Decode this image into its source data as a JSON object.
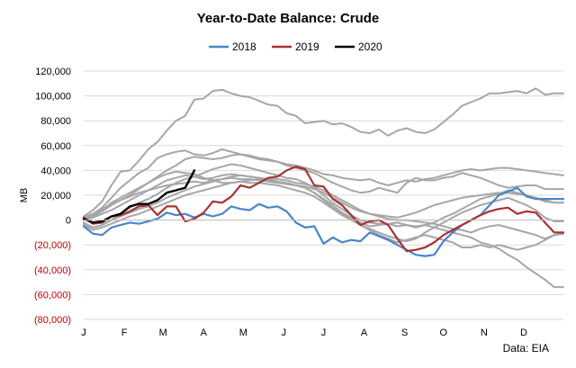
{
  "chart_data": {
    "type": "line",
    "title": "Year-to-Date Balance: Crude",
    "ylabel": "MB",
    "source": "Data: EIA",
    "ylim": [
      -80000,
      120000
    ],
    "yticks": [
      {
        "value": 120000,
        "label": "120,000"
      },
      {
        "value": 100000,
        "label": "100,000"
      },
      {
        "value": 80000,
        "label": "80,000"
      },
      {
        "value": 60000,
        "label": "60,000"
      },
      {
        "value": 40000,
        "label": "40,000"
      },
      {
        "value": 20000,
        "label": "20,000"
      },
      {
        "value": 0,
        "label": "0"
      },
      {
        "value": -20000,
        "label": "(20,000)"
      },
      {
        "value": -40000,
        "label": "(40,000)"
      },
      {
        "value": -60000,
        "label": "(60,000)"
      },
      {
        "value": -80000,
        "label": "(80,000)"
      }
    ],
    "xlim": [
      0,
      52
    ],
    "month_labels": [
      {
        "label": "J",
        "x": 0
      },
      {
        "label": "F",
        "x": 4.4
      },
      {
        "label": "M",
        "x": 8.6
      },
      {
        "label": "A",
        "x": 13
      },
      {
        "label": "M",
        "x": 17.3
      },
      {
        "label": "J",
        "x": 21.7
      },
      {
        "label": "J",
        "x": 26
      },
      {
        "label": "A",
        "x": 30.4
      },
      {
        "label": "S",
        "x": 34.8
      },
      {
        "label": "O",
        "x": 39
      },
      {
        "label": "N",
        "x": 43.4
      },
      {
        "label": "D",
        "x": 47.7
      }
    ],
    "negative_color": "#c00000",
    "legend_position": "top",
    "series": [
      {
        "name": "2018",
        "color": "#4a86c8",
        "width": 2.2,
        "in_legend": true,
        "y": [
          -5000,
          -11000,
          -12000,
          -6000,
          -4000,
          -2000,
          -3000,
          -1000,
          1000,
          6000,
          4000,
          5000,
          2000,
          5000,
          3000,
          5000,
          11000,
          9000,
          8000,
          13000,
          10000,
          11000,
          7000,
          -2000,
          -6000,
          -5000,
          -19000,
          -14000,
          -18000,
          -16000,
          -17000,
          -10000,
          -13000,
          -16000,
          -20000,
          -24000,
          -28000,
          -29000,
          -28000,
          -17000,
          -10000,
          -4000,
          0,
          4000,
          12000,
          20000,
          23000,
          26000,
          19000,
          17000,
          17000,
          17000,
          17000
        ]
      },
      {
        "name": "2019",
        "color": "#a83232",
        "width": 2.2,
        "in_legend": true,
        "y": [
          2000,
          -3000,
          -2000,
          3000,
          4000,
          7000,
          11000,
          12000,
          4000,
          11000,
          11000,
          -1000,
          1000,
          6000,
          15000,
          14000,
          19000,
          28000,
          26000,
          30000,
          34000,
          35000,
          40000,
          43000,
          41000,
          28000,
          27000,
          17000,
          12000,
          4000,
          -4000,
          -1000,
          0,
          -4000,
          -15000,
          -25000,
          -24000,
          -22000,
          -18000,
          -12000,
          -8000,
          -4000,
          0,
          4000,
          7000,
          9000,
          10000,
          5000,
          7000,
          6000,
          -2000,
          -10000,
          -10000
        ]
      },
      {
        "name": "2020",
        "color": "#000000",
        "width": 2.4,
        "in_legend": true,
        "y": [
          1000,
          -2000,
          -1000,
          3000,
          5000,
          11000,
          13000,
          13000,
          16000,
          22000,
          24000,
          26000,
          40000
        ]
      },
      {
        "name": "",
        "color": "#a6a6a6",
        "width": 2,
        "in_legend": false,
        "y": [
          3000,
          8000,
          15000,
          28000,
          39000,
          40000,
          48000,
          57000,
          63000,
          72000,
          80000,
          84000,
          97000,
          98000,
          104000,
          105000,
          102000,
          100000,
          99000,
          96000,
          93000,
          92000,
          86000,
          84000,
          78000,
          79000,
          80000,
          77000,
          78000,
          75000,
          71000,
          70000,
          73000,
          68000,
          72000,
          74000,
          71000,
          70000,
          73000,
          79000,
          85000,
          92000,
          95000,
          98000,
          102000,
          102000,
          103000,
          104000,
          102000,
          106000,
          101000,
          102000,
          102000
        ]
      },
      {
        "name": "",
        "color": "#a6a6a6",
        "width": 2,
        "in_legend": false,
        "y": [
          2000,
          5000,
          10000,
          18000,
          26000,
          32000,
          38000,
          42000,
          50000,
          53000,
          55000,
          56000,
          53000,
          52000,
          54000,
          57000,
          55000,
          53000,
          51000,
          49000,
          48000,
          47000,
          45000,
          44000,
          42000,
          40000,
          37000,
          36000,
          34000,
          33000,
          32000,
          33000,
          30000,
          28000,
          30000,
          32000,
          31000,
          33000,
          34000,
          36000,
          38000,
          40000,
          41000,
          40000,
          41000,
          42000,
          42000,
          41000,
          40000,
          39000,
          38000,
          37000,
          36000
        ]
      },
      {
        "name": "",
        "color": "#a6a6a6",
        "width": 2,
        "in_legend": false,
        "y": [
          0,
          3000,
          7000,
          12000,
          16000,
          20000,
          25000,
          30000,
          35000,
          40000,
          44000,
          49000,
          51000,
          50000,
          49000,
          50000,
          52000,
          53000,
          52000,
          50000,
          49000,
          47000,
          44000,
          42000,
          40000,
          38000,
          34000,
          30000,
          27000,
          24000,
          22000,
          23000,
          26000,
          24000,
          22000,
          30000,
          34000,
          32000,
          32000,
          34000,
          35000,
          38000,
          36000,
          34000,
          31000,
          28000,
          26000,
          27000,
          28000,
          28000,
          25000,
          25000,
          25000
        ]
      },
      {
        "name": "",
        "color": "#a6a6a6",
        "width": 2,
        "in_legend": false,
        "y": [
          -2000,
          -6000,
          -4000,
          0,
          5000,
          10000,
          14000,
          17000,
          21000,
          26000,
          30000,
          33000,
          35000,
          38000,
          41000,
          43000,
          45000,
          44000,
          42000,
          40000,
          38000,
          36000,
          34000,
          33000,
          30000,
          26000,
          20000,
          14000,
          9000,
          4000,
          0,
          -2000,
          -3000,
          -3000,
          -5000,
          -4000,
          -5000,
          -4000,
          -6000,
          -8000,
          -10000,
          -12000,
          -14000,
          -18000,
          -20000,
          -23000,
          -28000,
          -32000,
          -38000,
          -43000,
          -48000,
          -54000,
          -54000
        ]
      },
      {
        "name": "",
        "color": "#a6a6a6",
        "width": 2,
        "in_legend": false,
        "y": [
          -3000,
          -6000,
          -4000,
          0,
          3000,
          6000,
          9000,
          11000,
          14000,
          18000,
          21000,
          24000,
          27000,
          29000,
          31000,
          33000,
          35000,
          36000,
          35000,
          34000,
          33000,
          31000,
          29000,
          28000,
          26000,
          22000,
          16000,
          10000,
          5000,
          1000,
          -4000,
          -8000,
          -12000,
          -15000,
          -18000,
          -16000,
          -14000,
          -12000,
          -14000,
          -16000,
          -18000,
          -22000,
          -22000,
          -20000,
          -22000,
          -20000,
          -22000,
          -24000,
          -22000,
          -20000,
          -16000,
          -12000,
          -11000
        ]
      },
      {
        "name": "",
        "color": "#a6a6a6",
        "width": 2,
        "in_legend": false,
        "y": [
          -4000,
          -8000,
          -6000,
          -3000,
          0,
          3000,
          5000,
          8000,
          11000,
          14000,
          17000,
          20000,
          22000,
          24000,
          26000,
          28000,
          30000,
          31000,
          30000,
          30000,
          29000,
          28000,
          26000,
          24000,
          22000,
          19000,
          14000,
          9000,
          4000,
          0,
          -4000,
          -7000,
          -10000,
          -13000,
          -15000,
          -17000,
          -15000,
          -10000,
          -6000,
          -2000,
          2000,
          6000,
          9000,
          12000,
          14000,
          16000,
          18000,
          15000,
          12000,
          8000,
          2000,
          -1000,
          -1000
        ]
      },
      {
        "name": "",
        "color": "#a6a6a6",
        "width": 2,
        "in_legend": false,
        "y": [
          0,
          2000,
          5000,
          8000,
          12000,
          16000,
          20000,
          24000,
          28000,
          32000,
          34000,
          36000,
          35000,
          33000,
          34000,
          36000,
          37000,
          36000,
          35000,
          34000,
          33000,
          33000,
          32000,
          30000,
          29000,
          27000,
          24000,
          20000,
          16000,
          12000,
          8000,
          5000,
          3000,
          1000,
          0,
          0,
          -1000,
          -2000,
          -3000,
          -5000,
          -7000,
          -8000,
          -10000,
          -7000,
          -5000,
          -4000,
          -6000,
          -8000,
          -10000,
          -12000,
          -15000,
          -12000,
          -11000
        ]
      },
      {
        "name": "",
        "color": "#a6a6a6",
        "width": 2,
        "in_legend": false,
        "y": [
          1000,
          4000,
          8000,
          14000,
          18000,
          22000,
          26000,
          30000,
          34000,
          37000,
          39000,
          38000,
          37000,
          34000,
          32000,
          30000,
          30000,
          31000,
          32000,
          33000,
          32000,
          31000,
          30000,
          28000,
          26000,
          22000,
          17000,
          12000,
          6000,
          2000,
          -2000,
          -5000,
          -4000,
          -3000,
          -2000,
          -4000,
          -6000,
          -4000,
          -2000,
          2000,
          5000,
          9000,
          13000,
          17000,
          19000,
          21000,
          24000,
          22000,
          20000,
          18000,
          15000,
          14000,
          14000
        ]
      },
      {
        "name": "",
        "color": "#a6a6a6",
        "width": 2,
        "in_legend": false,
        "y": [
          2000,
          5000,
          9000,
          13000,
          16000,
          19000,
          22000,
          24000,
          26000,
          28000,
          29000,
          30000,
          31000,
          30000,
          32000,
          33000,
          34000,
          33000,
          33000,
          32000,
          31000,
          30000,
          29000,
          28000,
          27000,
          25000,
          22000,
          18000,
          14000,
          10000,
          7000,
          5000,
          4000,
          3000,
          2000,
          4000,
          6000,
          9000,
          12000,
          14000,
          16000,
          18000,
          19000,
          20000,
          21000,
          22000,
          22000,
          21000,
          20000,
          18000,
          16000,
          14000,
          14000
        ]
      }
    ]
  }
}
